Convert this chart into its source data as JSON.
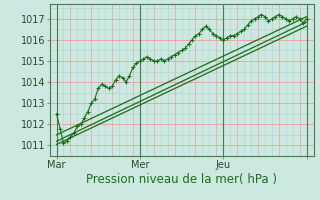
{
  "title": "",
  "xlabel": "Pression niveau de la mer( hPa )",
  "bg_color": "#cce8e0",
  "plot_bg_color": "#cce8e0",
  "grid_pink": "#f0a0a0",
  "grid_minor": "#aed4cc",
  "line_color": "#1a6e1a",
  "ylim": [
    1010.5,
    1017.7
  ],
  "xlim": [
    -2,
    74
  ],
  "yticks": [
    1011,
    1012,
    1013,
    1014,
    1015,
    1016,
    1017
  ],
  "xtick_positions": [
    0,
    24,
    48,
    72
  ],
  "xtick_labels": [
    "Mar",
    "Mer",
    "Jeu",
    ""
  ],
  "series1_x": [
    0,
    1,
    2,
    3,
    4,
    5,
    6,
    7,
    8,
    9,
    10,
    11,
    12,
    13,
    14,
    15,
    16,
    17,
    18,
    19,
    20,
    21,
    22,
    23,
    24,
    25,
    26,
    27,
    28,
    29,
    30,
    31,
    32,
    33,
    34,
    35,
    36,
    37,
    38,
    39,
    40,
    41,
    42,
    43,
    44,
    45,
    46,
    47,
    48,
    49,
    50,
    51,
    52,
    53,
    54,
    55,
    56,
    57,
    58,
    59,
    60,
    61,
    62,
    63,
    64,
    65,
    66,
    67,
    68,
    69,
    70,
    71,
    72
  ],
  "series1_y": [
    1012.5,
    1011.8,
    1011.1,
    1011.2,
    1011.4,
    1011.6,
    1011.9,
    1012.0,
    1012.3,
    1012.6,
    1013.0,
    1013.2,
    1013.7,
    1013.9,
    1013.8,
    1013.7,
    1013.8,
    1014.1,
    1014.3,
    1014.2,
    1014.0,
    1014.3,
    1014.7,
    1014.9,
    1015.0,
    1015.1,
    1015.2,
    1015.1,
    1015.0,
    1015.0,
    1015.1,
    1015.0,
    1015.1,
    1015.2,
    1015.3,
    1015.4,
    1015.5,
    1015.6,
    1015.8,
    1016.0,
    1016.2,
    1016.3,
    1016.5,
    1016.65,
    1016.5,
    1016.3,
    1016.2,
    1016.1,
    1016.0,
    1016.1,
    1016.2,
    1016.2,
    1016.3,
    1016.4,
    1016.5,
    1016.7,
    1016.9,
    1017.0,
    1017.1,
    1017.2,
    1017.1,
    1016.9,
    1017.0,
    1017.1,
    1017.2,
    1017.1,
    1017.0,
    1016.9,
    1017.0,
    1017.1,
    1017.0,
    1016.8,
    1017.0
  ],
  "trend1_x": [
    0,
    72
  ],
  "trend1_y": [
    1011.5,
    1017.1
  ],
  "trend2_x": [
    0,
    72
  ],
  "trend2_y": [
    1011.2,
    1016.85
  ],
  "trend3_x": [
    0,
    72
  ],
  "trend3_y": [
    1011.05,
    1016.65
  ],
  "xlabel_color": "#1a6e1a",
  "xlabel_fontsize": 8.5,
  "tick_fontsize": 7.0
}
